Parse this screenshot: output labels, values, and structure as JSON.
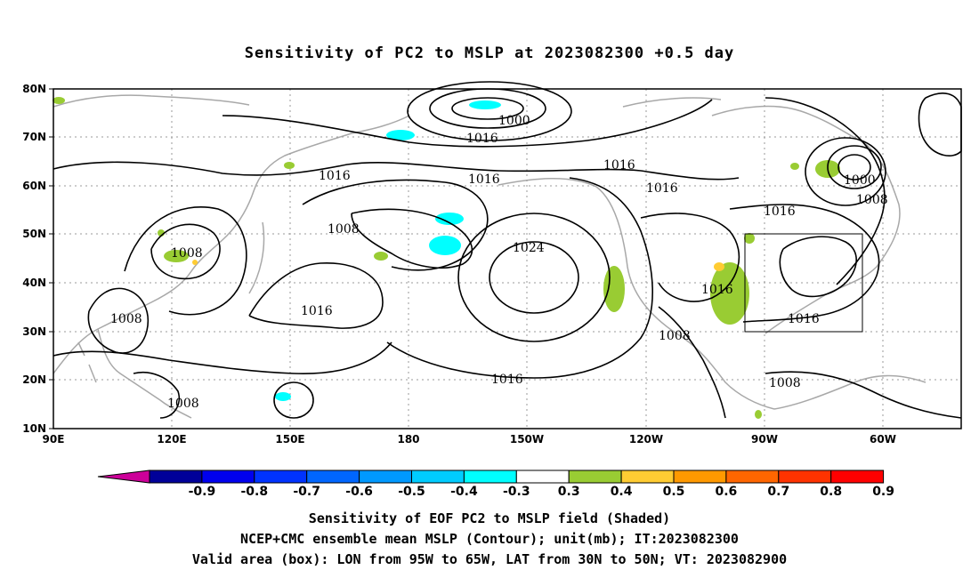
{
  "title": "Sensitivity of PC2 to MSLP at 2023082300 +0.5 day",
  "lat_ticks": [
    "80N",
    "70N",
    "60N",
    "50N",
    "40N",
    "30N",
    "20N",
    "10N"
  ],
  "lon_ticks": [
    "90E",
    "120E",
    "150E",
    "180",
    "150W",
    "120W",
    "90W",
    "60W"
  ],
  "contour_labels": [
    "1000",
    "1016",
    "1016",
    "1016",
    "1016",
    "1016",
    "1000",
    "1008",
    "1016",
    "1008",
    "1008",
    "1024",
    "1016",
    "1016",
    "1016",
    "1008",
    "1016",
    "1008",
    "1008",
    "1008"
  ],
  "colorbar": {
    "ticks": [
      "-0.9",
      "-0.8",
      "-0.7",
      "-0.6",
      "-0.5",
      "-0.4",
      "-0.3",
      "0.3",
      "0.4",
      "0.5",
      "0.6",
      "0.7",
      "0.8",
      "0.9"
    ],
    "colors": [
      "#000099",
      "#0000ee",
      "#0033ff",
      "#0066ff",
      "#0099ff",
      "#00ccff",
      "#00ffff",
      "#ffffff",
      "#99cc33",
      "#ffcc33",
      "#ff9900",
      "#ff6600",
      "#ff3300",
      "#ff0000"
    ],
    "left_cap_color": "#cc0099",
    "right_cap_color": "#ff99cc"
  },
  "valid_box": {
    "lon_from": "95W",
    "lon_to": "65W",
    "lat_from": "30N",
    "lat_to": "50N"
  },
  "footer": {
    "line1": "Sensitivity of EOF PC2 to MSLP field (Shaded)",
    "line2": "NCEP+CMC ensemble mean MSLP (Contour); unit(mb); IT:2023082300",
    "line3": "Valid area (box): LON from 95W to 65W, LAT from 30N to 50N; VT: 2023082900"
  }
}
